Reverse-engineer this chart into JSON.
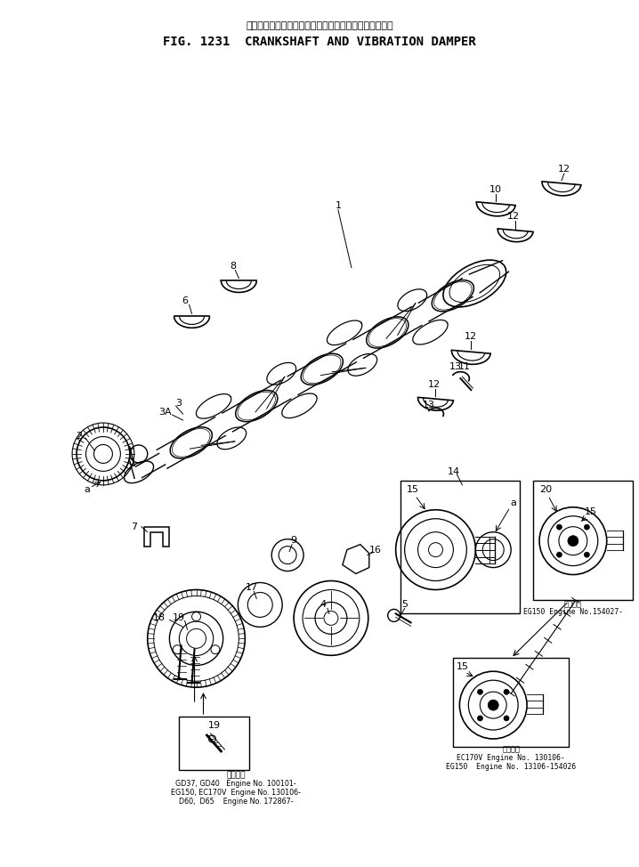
{
  "title_japanese": "クランクシャフト　および　バイブレーション　ダンパ",
  "title_english": "FIG. 1231  CRANKSHAFT AND VIBRATION DAMPER",
  "bg_color": "#ffffff",
  "line_color": "#000000",
  "note_left_title": "適用機種",
  "note_left_lines": [
    "GD37, GD40   Engine No. 100101-",
    "EG150, EC170V  Engine No. 130106-",
    "D60,  D65    Engine No. 172867-"
  ],
  "note_right1_title": "適用機種",
  "note_right1_lines": [
    "EG150 Engine No.154027-"
  ],
  "note_right2_title": "適用機種",
  "note_right2_lines": [
    "EC170V Engine No. 130106-",
    "EG150  Engine No. 13106-154026"
  ]
}
